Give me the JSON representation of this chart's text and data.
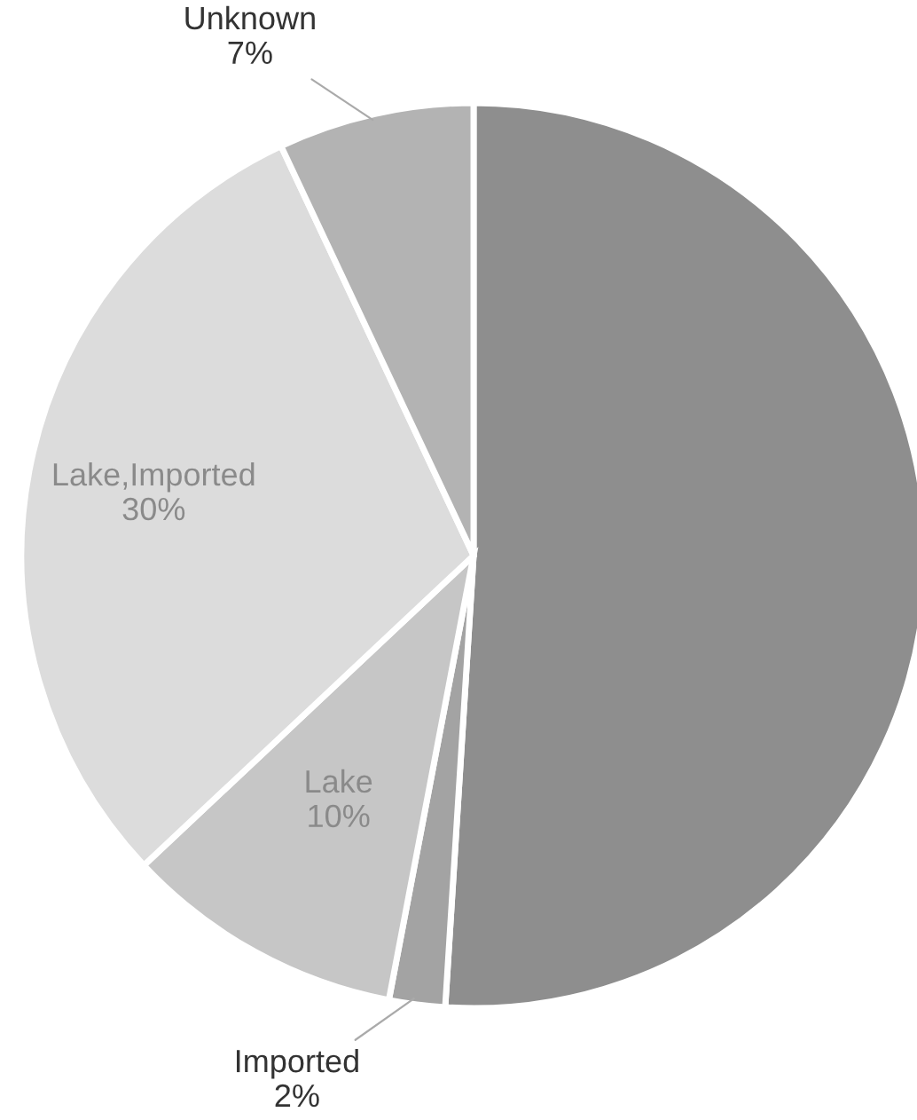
{
  "chart_data": {
    "type": "pie",
    "categories": [
      null,
      "Imported",
      "Lake",
      "Lake,Imported",
      "Unknown"
    ],
    "values": [
      51,
      2,
      10,
      30,
      7
    ],
    "value_labels": [
      null,
      "2%",
      "10%",
      "30%",
      "7%"
    ],
    "colors": [
      "#8e8e8e",
      "#a3a3a3",
      "#c6c6c6",
      "#dcdcdc",
      "#b3b3b3"
    ]
  }
}
